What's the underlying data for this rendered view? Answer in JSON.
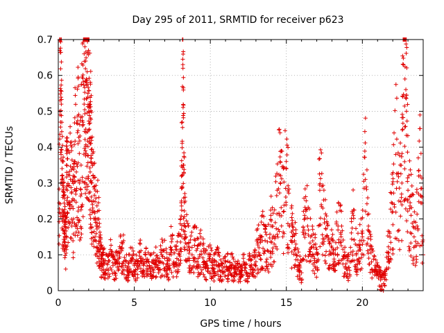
{
  "chart_data": {
    "type": "scatter",
    "title": "Day 295 of 2011, SRMTID for receiver p623",
    "xlabel": "GPS time / hours",
    "ylabel": "SRMTID / TECUs",
    "xlim": [
      0,
      24
    ],
    "ylim": [
      0,
      0.7
    ],
    "xticks": [
      0,
      5,
      10,
      15,
      20
    ],
    "yticks": [
      0,
      0.1,
      0.2,
      0.3,
      0.4,
      0.5,
      0.6,
      0.7
    ],
    "xtick_labels": [
      "0",
      "5",
      "10",
      "15",
      "20"
    ],
    "ytick_labels": [
      "0",
      "0.1",
      "0.2",
      "0.3",
      "0.4",
      "0.5",
      "0.6",
      "0.7"
    ],
    "grid": true,
    "marker": "+",
    "series": [
      {
        "name": "SRMTID",
        "color": "#e00000",
        "x": [
          0.05,
          0.1,
          0.15,
          0.2,
          0.25,
          0.3,
          0.35,
          0.4,
          0.45,
          0.5,
          0.55,
          0.6,
          0.7,
          0.8,
          0.9,
          1.0,
          1.1,
          1.2,
          1.3,
          1.4,
          1.5,
          1.6,
          1.7,
          1.75,
          1.8,
          1.85,
          1.9,
          1.95,
          2.0,
          2.05,
          2.1,
          2.15,
          2.2,
          2.3,
          2.4,
          2.5,
          2.6,
          2.7,
          2.8,
          2.9,
          3.0,
          3.2,
          3.4,
          3.6,
          3.8,
          4.0,
          4.2,
          4.4,
          4.6,
          4.8,
          5.0,
          5.2,
          5.4,
          5.6,
          5.8,
          6.0,
          6.2,
          6.4,
          6.6,
          6.8,
          7.0,
          7.2,
          7.4,
          7.6,
          7.8,
          8.0,
          8.1,
          8.15,
          8.2,
          8.25,
          8.3,
          8.4,
          8.6,
          8.8,
          9.0,
          9.2,
          9.4,
          9.6,
          9.8,
          10.0,
          10.2,
          10.4,
          10.6,
          10.8,
          11.0,
          11.2,
          11.4,
          11.6,
          11.8,
          12.0,
          12.2,
          12.4,
          12.6,
          12.8,
          13.0,
          13.2,
          13.4,
          13.6,
          13.8,
          14.0,
          14.2,
          14.4,
          14.6,
          14.8,
          15.0,
          15.2,
          15.4,
          15.6,
          15.8,
          16.0,
          16.2,
          16.4,
          16.6,
          16.8,
          17.0,
          17.2,
          17.4,
          17.6,
          17.8,
          18.0,
          18.2,
          18.4,
          18.6,
          18.8,
          19.0,
          19.2,
          19.4,
          19.6,
          19.8,
          20.0,
          20.2,
          20.4,
          20.6,
          20.8,
          21.0,
          21.2,
          21.4,
          21.6,
          21.8,
          22.0,
          22.2,
          22.4,
          22.6,
          22.7,
          22.8,
          22.9,
          23.0,
          23.2,
          23.4,
          23.6,
          23.8,
          24.0
        ],
        "y": [
          0.13,
          0.67,
          0.47,
          0.52,
          0.31,
          0.26,
          0.22,
          0.18,
          0.15,
          0.12,
          0.33,
          0.28,
          0.24,
          0.31,
          0.25,
          0.2,
          0.36,
          0.28,
          0.41,
          0.3,
          0.35,
          0.46,
          0.52,
          0.68,
          0.64,
          0.59,
          0.61,
          0.55,
          0.5,
          0.45,
          0.41,
          0.37,
          0.3,
          0.25,
          0.22,
          0.18,
          0.2,
          0.15,
          0.09,
          0.07,
          0.08,
          0.06,
          0.1,
          0.07,
          0.08,
          0.09,
          0.12,
          0.07,
          0.06,
          0.08,
          0.07,
          0.06,
          0.09,
          0.05,
          0.08,
          0.07,
          0.06,
          0.08,
          0.05,
          0.1,
          0.09,
          0.06,
          0.12,
          0.08,
          0.09,
          0.11,
          0.25,
          0.47,
          0.62,
          0.35,
          0.18,
          0.15,
          0.12,
          0.1,
          0.14,
          0.09,
          0.11,
          0.08,
          0.07,
          0.1,
          0.06,
          0.08,
          0.07,
          0.05,
          0.08,
          0.06,
          0.07,
          0.05,
          0.06,
          0.04,
          0.08,
          0.05,
          0.07,
          0.06,
          0.1,
          0.12,
          0.15,
          0.14,
          0.11,
          0.18,
          0.13,
          0.28,
          0.3,
          0.22,
          0.34,
          0.18,
          0.15,
          0.12,
          0.07,
          0.05,
          0.21,
          0.18,
          0.15,
          0.12,
          0.08,
          0.28,
          0.23,
          0.15,
          0.1,
          0.12,
          0.07,
          0.18,
          0.15,
          0.09,
          0.06,
          0.08,
          0.21,
          0.1,
          0.12,
          0.15,
          0.31,
          0.18,
          0.08,
          0.06,
          0.05,
          0.03,
          0.02,
          0.06,
          0.16,
          0.22,
          0.38,
          0.25,
          0.3,
          0.63,
          0.59,
          0.5,
          0.28,
          0.21,
          0.15,
          0.18,
          0.32,
          0.1
        ]
      }
    ],
    "annotations": [
      "Red '+' markers plotted densely along the full 0-24 h range",
      "Peak near hour 1.8 around 0.68 TECU",
      "Spike near hour 8.2 around 0.62 TECU",
      "Late rise near hour 22.8 around 0.63 TECU"
    ]
  }
}
